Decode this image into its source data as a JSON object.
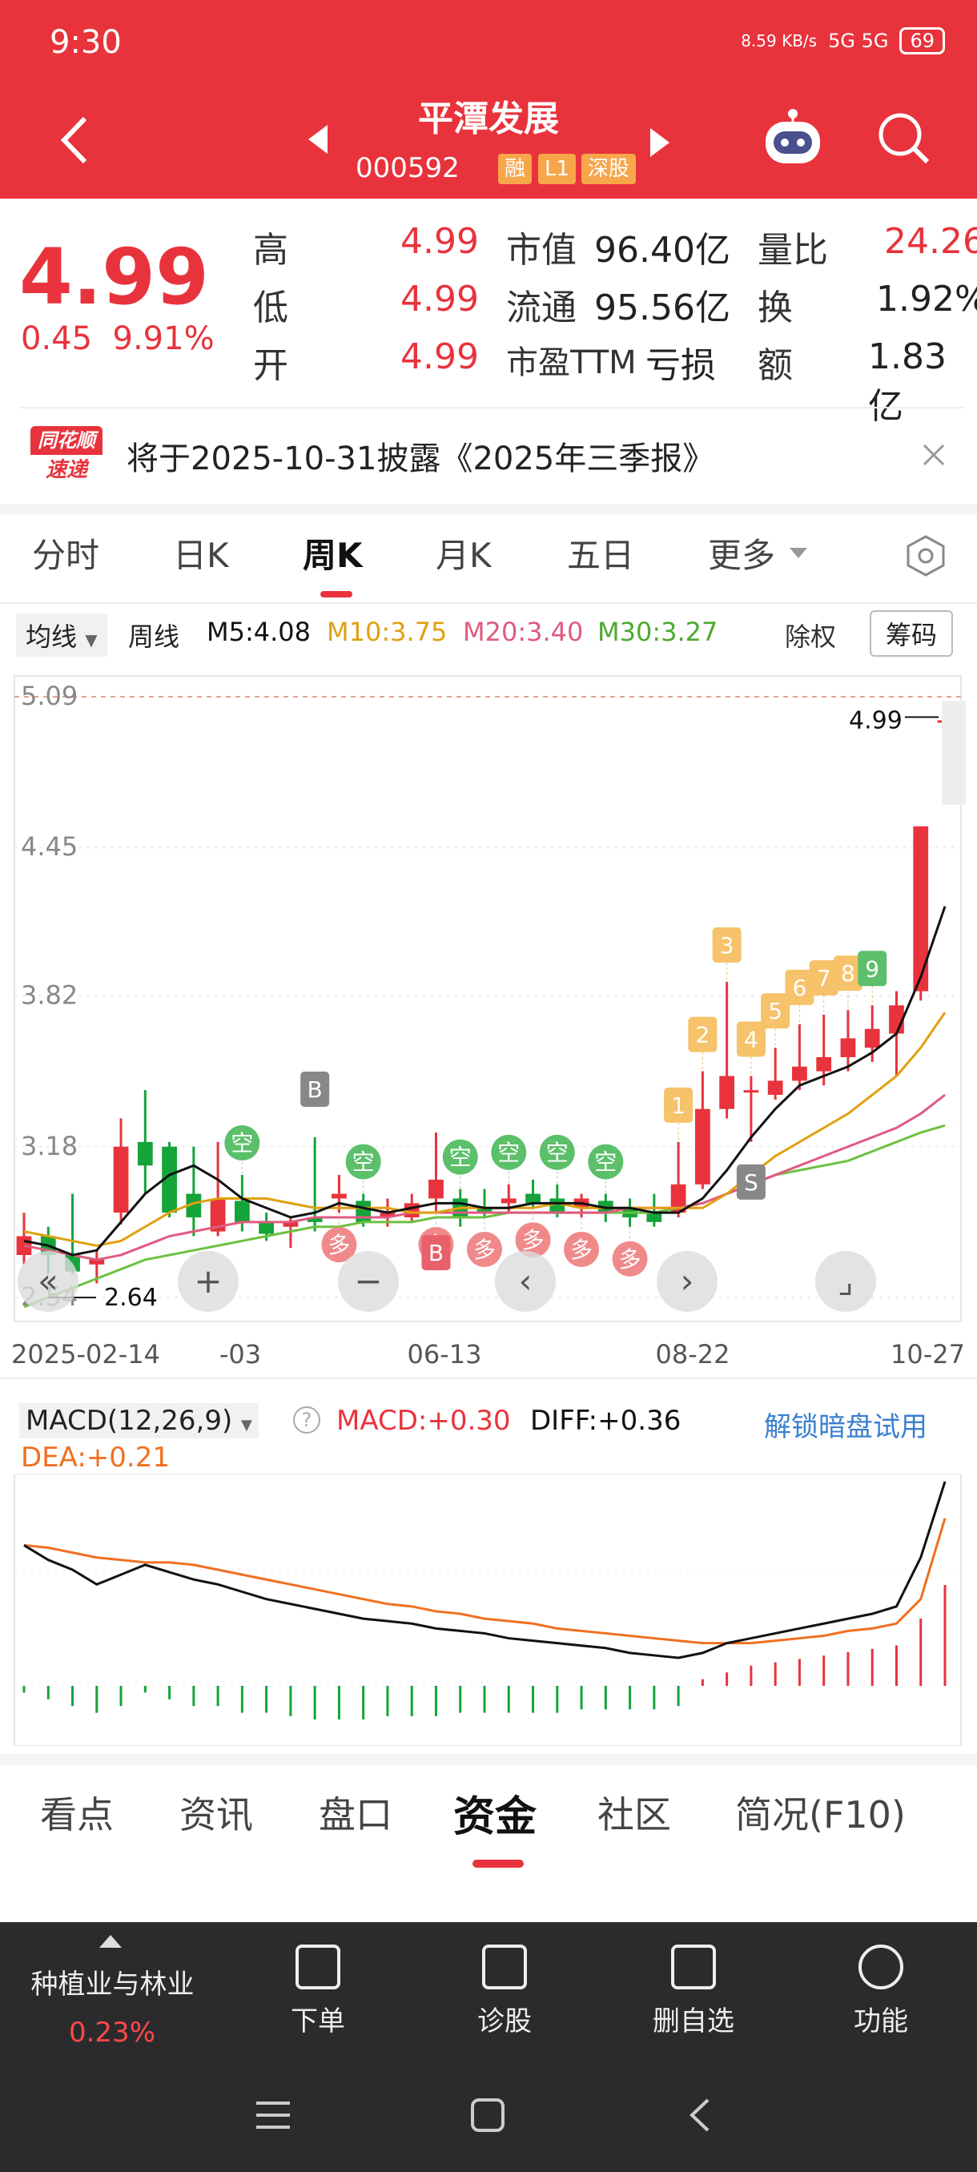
{
  "status": {
    "time": "9:30",
    "net": "8.59 KB/s",
    "signal": "5G 5G",
    "battery": "69"
  },
  "header": {
    "title": "平潭发展",
    "code": "000592",
    "tags": [
      "融",
      "L1",
      "深股"
    ]
  },
  "quote": {
    "price": "4.99",
    "change": "0.45",
    "change_pct": "9.91%",
    "high_label": "高",
    "high": "4.99",
    "low_label": "低",
    "low": "4.99",
    "open_label": "开",
    "open": "4.99",
    "mcap_label": "市值",
    "mcap": "96.40亿",
    "float_label": "流通",
    "float": "95.56亿",
    "pe_label": "市盈TTM",
    "pe": "亏损",
    "volratio_label": "量比",
    "volratio": "24.26",
    "turnover_label": "换",
    "turnover": "1.92%",
    "amount_label": "额",
    "amount": "1.83亿"
  },
  "banner": {
    "logo_top": "同花顺",
    "logo_bottom": "速递",
    "text": "将于2025-10-31披露《2025年三季报》"
  },
  "tabs": [
    "分时",
    "日K",
    "周K",
    "月K",
    "五日",
    "更多"
  ],
  "ma": {
    "selector": "均线",
    "period": "周线",
    "m5": "M5:4.08",
    "m10": "M10:3.75",
    "m20": "M20:3.40",
    "m30": "M30:3.27",
    "fq": "除权",
    "chip": "筹码"
  },
  "colors": {
    "up": "#e8333c",
    "down": "#14a43a",
    "m5": "#111111",
    "m10": "#e0a010",
    "m20": "#e05a80",
    "m30": "#6cc040",
    "signal_kong": "#5cbf6a",
    "signal_duo": "#f08a8a",
    "signal_num": "#f6c26a"
  },
  "chart_data": {
    "type": "candlestick",
    "period": "weekly",
    "y_ticks": [
      "5.09",
      "4.45",
      "3.82",
      "3.18",
      "2.54"
    ],
    "x_ticks": [
      "2025-02-14",
      "-03",
      "06-13",
      "08-22",
      "10-27"
    ],
    "high_marker": "4.99",
    "low_marker": "2.64",
    "candles": [
      {
        "o": 2.72,
        "c": 2.8,
        "h": 2.9,
        "l": 2.68
      },
      {
        "o": 2.8,
        "c": 2.72,
        "h": 2.84,
        "l": 2.64
      },
      {
        "o": 2.72,
        "c": 2.65,
        "h": 2.98,
        "l": 2.64
      },
      {
        "o": 2.68,
        "c": 2.7,
        "h": 2.74,
        "l": 2.6
      },
      {
        "o": 2.9,
        "c": 3.18,
        "h": 3.3,
        "l": 2.85
      },
      {
        "o": 3.2,
        "c": 3.1,
        "h": 3.42,
        "l": 2.98
      },
      {
        "o": 3.18,
        "c": 2.9,
        "h": 3.2,
        "l": 2.88
      },
      {
        "o": 2.98,
        "c": 2.88,
        "h": 3.18,
        "l": 2.8
      },
      {
        "o": 2.82,
        "c": 2.96,
        "h": 3.2,
        "l": 2.8
      },
      {
        "o": 2.95,
        "c": 2.86,
        "h": 3.06,
        "l": 2.82
      },
      {
        "o": 2.86,
        "c": 2.81,
        "h": 2.9,
        "l": 2.78
      },
      {
        "o": 2.84,
        "c": 2.86,
        "h": 2.88,
        "l": 2.75
      },
      {
        "o": 2.88,
        "c": 2.86,
        "h": 3.22,
        "l": 2.82
      },
      {
        "o": 2.96,
        "c": 2.98,
        "h": 3.06,
        "l": 2.9
      },
      {
        "o": 2.95,
        "c": 2.86,
        "h": 2.98,
        "l": 2.84
      },
      {
        "o": 2.88,
        "c": 2.9,
        "h": 2.96,
        "l": 2.84
      },
      {
        "o": 2.88,
        "c": 2.94,
        "h": 2.98,
        "l": 2.86
      },
      {
        "o": 2.96,
        "c": 3.04,
        "h": 3.24,
        "l": 2.9
      },
      {
        "o": 2.96,
        "c": 2.88,
        "h": 3.0,
        "l": 2.84
      },
      {
        "o": 2.92,
        "c": 2.9,
        "h": 3.0,
        "l": 2.88
      },
      {
        "o": 2.94,
        "c": 2.96,
        "h": 3.02,
        "l": 2.9
      },
      {
        "o": 2.98,
        "c": 2.94,
        "h": 3.04,
        "l": 2.92
      },
      {
        "o": 2.96,
        "c": 2.9,
        "h": 3.02,
        "l": 2.88
      },
      {
        "o": 2.92,
        "c": 2.96,
        "h": 2.98,
        "l": 2.88
      },
      {
        "o": 2.95,
        "c": 2.9,
        "h": 2.98,
        "l": 2.86
      },
      {
        "o": 2.92,
        "c": 2.88,
        "h": 2.96,
        "l": 2.84
      },
      {
        "o": 2.9,
        "c": 2.86,
        "h": 2.98,
        "l": 2.84
      },
      {
        "o": 2.9,
        "c": 3.02,
        "h": 3.2,
        "l": 2.88
      },
      {
        "o": 3.02,
        "c": 3.34,
        "h": 3.5,
        "l": 3.0
      },
      {
        "o": 3.34,
        "c": 3.48,
        "h": 3.88,
        "l": 3.3
      },
      {
        "o": 3.42,
        "c": 3.42,
        "h": 3.48,
        "l": 3.2
      },
      {
        "o": 3.4,
        "c": 3.46,
        "h": 3.6,
        "l": 3.38
      },
      {
        "o": 3.46,
        "c": 3.52,
        "h": 3.7,
        "l": 3.42
      },
      {
        "o": 3.5,
        "c": 3.56,
        "h": 3.74,
        "l": 3.44
      },
      {
        "o": 3.56,
        "c": 3.64,
        "h": 3.76,
        "l": 3.5
      },
      {
        "o": 3.6,
        "c": 3.68,
        "h": 3.78,
        "l": 3.54
      },
      {
        "o": 3.66,
        "c": 3.78,
        "h": 3.84,
        "l": 3.48
      },
      {
        "o": 3.84,
        "c": 4.54,
        "h": 4.54,
        "l": 3.8
      },
      {
        "o": 4.99,
        "c": 4.99,
        "h": 4.99,
        "l": 4.99
      }
    ],
    "ma5": [
      2.78,
      2.76,
      2.72,
      2.74,
      2.86,
      2.98,
      3.06,
      3.1,
      3.04,
      2.96,
      2.92,
      2.88,
      2.9,
      2.94,
      2.92,
      2.9,
      2.92,
      2.94,
      2.94,
      2.92,
      2.92,
      2.94,
      2.94,
      2.94,
      2.92,
      2.92,
      2.9,
      2.9,
      2.96,
      3.08,
      3.22,
      3.34,
      3.44,
      3.48,
      3.52,
      3.58,
      3.66,
      3.9,
      4.2
    ],
    "ma10": [
      2.82,
      2.8,
      2.78,
      2.76,
      2.78,
      2.84,
      2.9,
      2.94,
      2.96,
      2.96,
      2.96,
      2.94,
      2.92,
      2.92,
      2.92,
      2.92,
      2.9,
      2.9,
      2.92,
      2.92,
      2.92,
      2.92,
      2.94,
      2.92,
      2.92,
      2.92,
      2.92,
      2.92,
      2.92,
      2.98,
      3.06,
      3.14,
      3.2,
      3.26,
      3.32,
      3.4,
      3.48,
      3.6,
      3.75
    ],
    "ma20": [
      2.76,
      2.74,
      2.72,
      2.7,
      2.72,
      2.76,
      2.8,
      2.82,
      2.84,
      2.86,
      2.86,
      2.86,
      2.88,
      2.88,
      2.88,
      2.88,
      2.9,
      2.9,
      2.9,
      2.9,
      2.9,
      2.9,
      2.9,
      2.9,
      2.9,
      2.92,
      2.92,
      2.92,
      2.94,
      2.98,
      3.02,
      3.06,
      3.1,
      3.14,
      3.18,
      3.22,
      3.26,
      3.32,
      3.4
    ],
    "ma30": [
      2.5,
      2.54,
      2.58,
      2.62,
      2.66,
      2.7,
      2.72,
      2.74,
      2.76,
      2.78,
      2.8,
      2.82,
      2.84,
      2.84,
      2.86,
      2.86,
      2.86,
      2.88,
      2.88,
      2.88,
      2.9,
      2.9,
      2.9,
      2.9,
      2.9,
      2.9,
      2.9,
      2.92,
      2.94,
      2.98,
      3.02,
      3.06,
      3.08,
      3.1,
      3.12,
      3.16,
      3.2,
      3.24,
      3.27
    ],
    "signals_kong": [
      {
        "i": 9,
        "label": "空"
      },
      {
        "i": 14,
        "label": "空"
      },
      {
        "i": 18,
        "label": "空"
      },
      {
        "i": 20,
        "label": "空"
      },
      {
        "i": 22,
        "label": "空"
      },
      {
        "i": 24,
        "label": "空"
      }
    ],
    "signals_duo": [
      {
        "i": 13,
        "label": "多"
      },
      {
        "i": 17,
        "label": "多"
      },
      {
        "i": 19,
        "label": "多"
      },
      {
        "i": 21,
        "label": "多"
      },
      {
        "i": 23,
        "label": "多"
      },
      {
        "i": 25,
        "label": "多"
      }
    ],
    "signals_num": [
      {
        "i": 27,
        "label": "1"
      },
      {
        "i": 28,
        "label": "2"
      },
      {
        "i": 29,
        "label": "3"
      },
      {
        "i": 30,
        "label": "4"
      },
      {
        "i": 31,
        "label": "5"
      },
      {
        "i": 32,
        "label": "6"
      },
      {
        "i": 33,
        "label": "7"
      },
      {
        "i": 34,
        "label": "8"
      },
      {
        "i": 35,
        "label": "9"
      }
    ],
    "signals_bs": [
      {
        "i": 12,
        "label": "B",
        "side": "top"
      },
      {
        "i": 17,
        "label": "B",
        "side": "bottom"
      },
      {
        "i": 30,
        "label": "S",
        "side": "bottom"
      }
    ]
  },
  "macd": {
    "title": "MACD(12,26,9)",
    "macd": "MACD:+0.30",
    "diff": "DIFF:+0.36",
    "dea": "DEA:+0.21",
    "unlock": "解锁暗盘试用",
    "chart_data": {
      "type": "line",
      "diff": [
        0.1,
        0.04,
        0.0,
        -0.06,
        -0.02,
        0.02,
        -0.01,
        -0.04,
        -0.06,
        -0.09,
        -0.12,
        -0.14,
        -0.16,
        -0.18,
        -0.2,
        -0.21,
        -0.22,
        -0.24,
        -0.25,
        -0.26,
        -0.28,
        -0.29,
        -0.3,
        -0.31,
        -0.32,
        -0.34,
        -0.35,
        -0.36,
        -0.34,
        -0.3,
        -0.28,
        -0.26,
        -0.24,
        -0.22,
        -0.2,
        -0.18,
        -0.15,
        0.05,
        0.36
      ],
      "dea": [
        0.1,
        0.09,
        0.07,
        0.05,
        0.04,
        0.03,
        0.03,
        0.02,
        0.0,
        -0.02,
        -0.04,
        -0.06,
        -0.08,
        -0.1,
        -0.12,
        -0.14,
        -0.15,
        -0.17,
        -0.18,
        -0.2,
        -0.21,
        -0.22,
        -0.24,
        -0.25,
        -0.26,
        -0.27,
        -0.28,
        -0.29,
        -0.3,
        -0.3,
        -0.3,
        -0.29,
        -0.28,
        -0.27,
        -0.25,
        -0.24,
        -0.22,
        -0.12,
        0.21
      ],
      "hist": [
        -0.02,
        -0.04,
        -0.06,
        -0.08,
        -0.06,
        -0.02,
        -0.04,
        -0.06,
        -0.06,
        -0.08,
        -0.08,
        -0.09,
        -0.1,
        -0.1,
        -0.1,
        -0.09,
        -0.09,
        -0.09,
        -0.08,
        -0.08,
        -0.08,
        -0.08,
        -0.08,
        -0.07,
        -0.07,
        -0.07,
        -0.07,
        -0.06,
        0.02,
        0.04,
        0.06,
        0.07,
        0.08,
        0.09,
        0.1,
        0.11,
        0.12,
        0.2,
        0.3
      ]
    }
  },
  "bottom_tabs": [
    "看点",
    "资讯",
    "盘口",
    "资金",
    "社区",
    "简况(F10)"
  ],
  "bottombar": {
    "sector_name": "种植业与林业",
    "sector_pct": "0.23%",
    "buttons": [
      "下单",
      "诊股",
      "删自选",
      "功能"
    ]
  }
}
